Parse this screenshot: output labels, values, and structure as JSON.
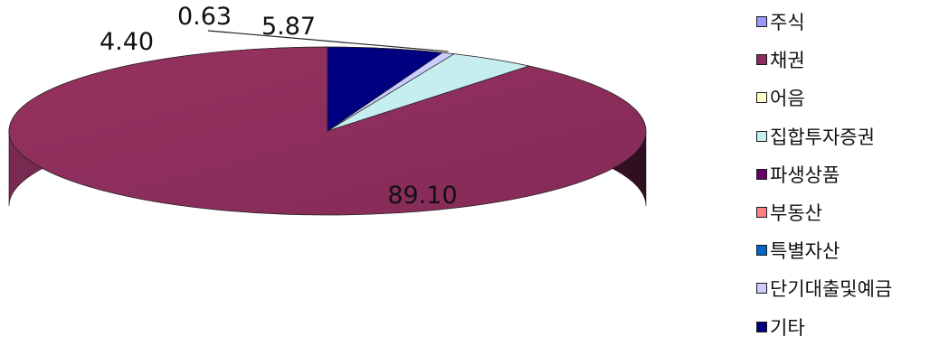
{
  "chart_data": {
    "type": "pie",
    "style": "3d-exploded-none",
    "labels": [
      "주식",
      "채권",
      "어음",
      "집합투자증권",
      "파생상품",
      "부동산",
      "특별자산",
      "단기대출및예금",
      "기타"
    ],
    "values": [
      0,
      89.1,
      0,
      4.4,
      0,
      0,
      0,
      0.63,
      5.87
    ],
    "value_labels": [
      "",
      "89.10",
      "",
      "4.40",
      "",
      "",
      "",
      "0.63",
      "5.87"
    ],
    "colors": [
      "#9999ff",
      "#8b2d5c",
      "#ffffcc",
      "#c6eeee",
      "#660066",
      "#ff8080",
      "#0066cc",
      "#ccccff",
      "#000080"
    ],
    "start": "12 o'clock, counter-clockwise",
    "legend_position": "right"
  }
}
